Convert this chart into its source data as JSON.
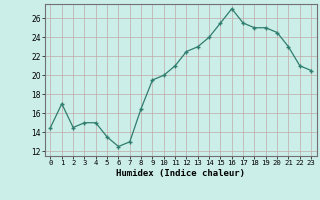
{
  "x": [
    0,
    1,
    2,
    3,
    4,
    5,
    6,
    7,
    8,
    9,
    10,
    11,
    12,
    13,
    14,
    15,
    16,
    17,
    18,
    19,
    20,
    21,
    22,
    23
  ],
  "y": [
    14.5,
    17.0,
    14.5,
    15.0,
    15.0,
    13.5,
    12.5,
    13.0,
    16.5,
    19.5,
    20.0,
    21.0,
    22.5,
    23.0,
    24.0,
    25.5,
    27.0,
    25.5,
    25.0,
    25.0,
    24.5,
    23.0,
    21.0,
    20.5
  ],
  "xlabel": "Humidex (Indice chaleur)",
  "ylim": [
    11.5,
    27.5
  ],
  "xlim": [
    -0.5,
    23.5
  ],
  "yticks": [
    12,
    14,
    16,
    18,
    20,
    22,
    24,
    26
  ],
  "xtick_labels": [
    "0",
    "1",
    "2",
    "3",
    "4",
    "5",
    "6",
    "7",
    "8",
    "9",
    "10",
    "11",
    "12",
    "13",
    "14",
    "15",
    "16",
    "17",
    "18",
    "19",
    "20",
    "21",
    "22",
    "23"
  ],
  "line_color": "#2e7d6e",
  "bg_color": "#cceee8",
  "grid_color": "#c0a8a8",
  "marker": "+"
}
